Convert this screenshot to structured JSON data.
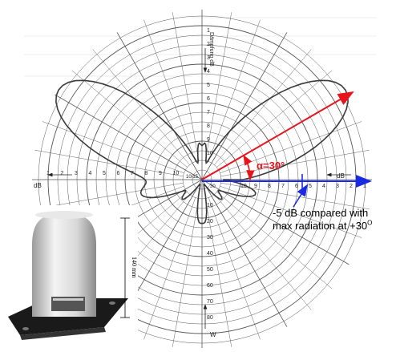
{
  "diagram": {
    "alpha_label": "α=30°",
    "db_axis_label": "dB",
    "db_axis_label_left": "dB",
    "vertical_axis_label": "Dämpfung dB",
    "bottom_axis_label": "W",
    "center_label_left": "10/15",
    "center_label_right": "30",
    "left_ticks": [
      "1",
      "2",
      "3",
      "4",
      "5",
      "6",
      "7",
      "8",
      "9",
      "10"
    ],
    "right_ticks": [
      "10",
      "9",
      "8",
      "7",
      "6",
      "5",
      "4",
      "3",
      "2",
      "1"
    ],
    "top_ticks": [
      "1",
      "2",
      "3",
      "4",
      "5",
      "6",
      "7",
      "8",
      "9",
      "10"
    ],
    "bottom_ticks": [
      "10",
      "20",
      "30",
      "40",
      "50",
      "60",
      "70",
      "80"
    ],
    "annotation_line1": "-5 dB compared with",
    "annotation_line2": "max radiation at +30",
    "annotation_superscript": "O",
    "antenna_dimension": "140 mm",
    "colors": {
      "red_arrow": "#e8141c",
      "blue_arrow": "#1a2ae0",
      "grid": "#555555"
    }
  }
}
